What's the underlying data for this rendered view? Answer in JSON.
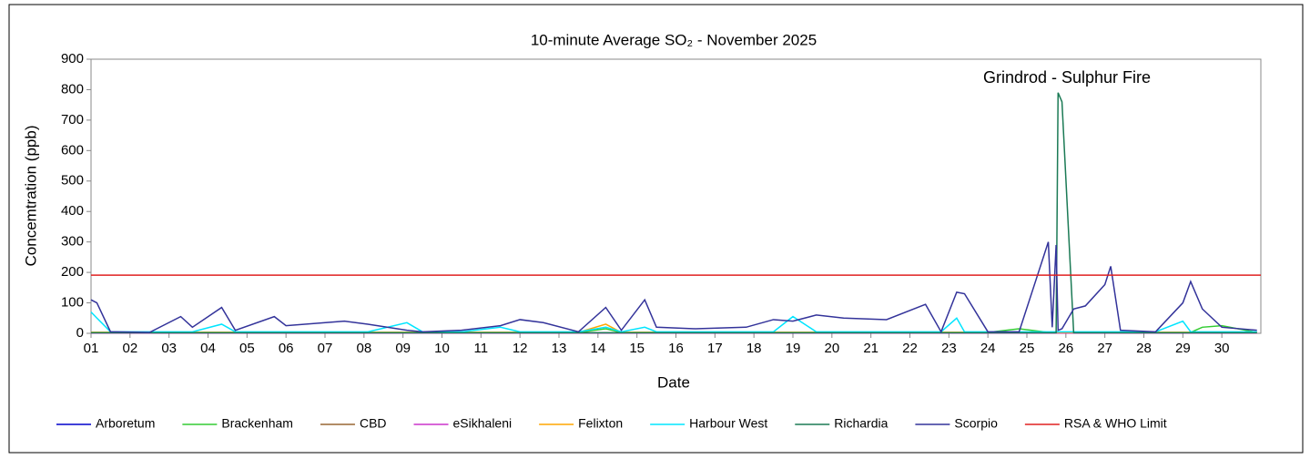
{
  "chart_data": {
    "type": "line",
    "title": "10-minute  Average  SO₂ - November  2025",
    "x_label": "Date",
    "y_label": "Concemtration (ppb)",
    "annotation": "Grindrod - Sulphur Fire",
    "xlim": [
      1,
      31
    ],
    "ylim": [
      0,
      900
    ],
    "yticks": [
      0,
      100,
      200,
      300,
      400,
      500,
      600,
      700,
      800,
      900
    ],
    "xticks": [
      {
        "value": 1,
        "label": "01"
      },
      {
        "value": 2,
        "label": "02"
      },
      {
        "value": 3,
        "label": "03"
      },
      {
        "value": 4,
        "label": "04"
      },
      {
        "value": 5,
        "label": "05"
      },
      {
        "value": 6,
        "label": "06"
      },
      {
        "value": 7,
        "label": "07"
      },
      {
        "value": 8,
        "label": "08"
      },
      {
        "value": 9,
        "label": "09"
      },
      10,
      11,
      12,
      13,
      14,
      15,
      16,
      17,
      18,
      19,
      20,
      21,
      22,
      23,
      24,
      25,
      26,
      27,
      28,
      29,
      30
    ],
    "grid": false,
    "x": [
      1,
      1.15,
      1.5,
      2.5,
      3.3,
      3.6,
      4.35,
      4.7,
      5.7,
      6,
      7.5,
      8.1,
      9.1,
      9.5,
      10.5,
      11.5,
      12,
      12.6,
      13.5,
      14.2,
      14.6,
      15.2,
      15.5,
      16.5,
      17.8,
      18.5,
      19,
      19.6,
      20.3,
      21.4,
      22.4,
      22.8,
      23.2,
      23.4,
      24,
      24.8,
      25.55,
      25.65,
      25.75,
      25.8,
      25.9,
      26.2,
      26.5,
      27,
      27.15,
      27.4,
      28.3,
      29,
      29.2,
      29.5,
      30,
      30.9
    ],
    "series": [
      {
        "name": "Arboretum",
        "color": "#0000cc",
        "values": [
          2,
          2,
          2,
          2,
          2,
          2,
          2,
          2,
          2,
          2,
          2,
          2,
          2,
          2,
          2,
          2,
          2,
          2,
          2,
          2,
          2,
          2,
          2,
          2,
          2,
          2,
          2,
          2,
          2,
          2,
          2,
          2,
          2,
          2,
          2,
          2,
          2,
          2,
          2,
          2,
          2,
          2,
          2,
          2,
          2,
          2,
          2,
          2,
          2,
          2,
          2,
          2
        ]
      },
      {
        "name": "Brackenham",
        "color": "#33cc33",
        "values": [
          3,
          3,
          3,
          3,
          3,
          3,
          3,
          3,
          3,
          3,
          3,
          3,
          3,
          3,
          3,
          3,
          3,
          3,
          3,
          15,
          3,
          3,
          3,
          3,
          3,
          3,
          3,
          3,
          3,
          3,
          3,
          3,
          3,
          3,
          3,
          15,
          3,
          3,
          3,
          3,
          3,
          3,
          3,
          3,
          3,
          3,
          3,
          3,
          3,
          20,
          25,
          3
        ]
      },
      {
        "name": "CBD",
        "color": "#996633",
        "values": [
          2,
          2,
          2,
          2,
          2,
          2,
          2,
          2,
          2,
          2,
          2,
          2,
          2,
          2,
          2,
          2,
          2,
          2,
          2,
          2,
          2,
          2,
          2,
          2,
          2,
          2,
          2,
          2,
          2,
          2,
          2,
          2,
          2,
          2,
          2,
          2,
          2,
          2,
          2,
          2,
          2,
          2,
          2,
          2,
          2,
          2,
          2,
          2,
          2,
          2,
          2,
          2
        ]
      },
      {
        "name": "eSikhaleni",
        "color": "#cc33cc",
        "values": [
          1,
          1,
          1,
          1,
          1,
          1,
          1,
          1,
          1,
          1,
          1,
          1,
          1,
          1,
          1,
          1,
          1,
          1,
          1,
          1,
          1,
          1,
          1,
          1,
          1,
          1,
          1,
          1,
          1,
          1,
          1,
          1,
          1,
          1,
          1,
          1,
          1,
          1,
          1,
          1,
          1,
          1,
          1,
          1,
          1,
          1,
          1,
          1,
          1,
          1,
          1,
          1
        ]
      },
      {
        "name": "Felixton",
        "color": "#ffa500",
        "values": [
          3,
          3,
          3,
          3,
          3,
          3,
          3,
          3,
          3,
          3,
          3,
          3,
          3,
          3,
          3,
          3,
          3,
          3,
          3,
          30,
          3,
          3,
          3,
          3,
          3,
          3,
          3,
          3,
          3,
          3,
          3,
          3,
          3,
          3,
          3,
          3,
          3,
          3,
          3,
          3,
          3,
          3,
          3,
          3,
          3,
          3,
          3,
          3,
          3,
          3,
          3,
          3
        ]
      },
      {
        "name": "Harbour West",
        "color": "#00e5ff",
        "values": [
          70,
          50,
          5,
          5,
          5,
          5,
          30,
          5,
          5,
          5,
          5,
          5,
          35,
          5,
          5,
          20,
          5,
          5,
          5,
          20,
          5,
          20,
          5,
          5,
          5,
          5,
          55,
          5,
          5,
          5,
          5,
          5,
          50,
          5,
          5,
          5,
          5,
          5,
          5,
          5,
          5,
          5,
          5,
          5,
          5,
          5,
          5,
          40,
          5,
          5,
          5,
          5
        ]
      },
      {
        "name": "Richardia",
        "color": "#1b7a55",
        "values": [
          2,
          2,
          2,
          2,
          2,
          2,
          2,
          2,
          2,
          2,
          2,
          2,
          2,
          2,
          2,
          2,
          2,
          2,
          2,
          2,
          2,
          2,
          2,
          2,
          2,
          2,
          2,
          2,
          2,
          2,
          2,
          2,
          2,
          2,
          2,
          2,
          2,
          2,
          2,
          790,
          760,
          2,
          2,
          2,
          2,
          2,
          2,
          2,
          2,
          2,
          2,
          2
        ]
      },
      {
        "name": "Scorpio",
        "color": "#33339a",
        "values": [
          110,
          100,
          5,
          3,
          55,
          20,
          85,
          10,
          55,
          25,
          40,
          30,
          10,
          5,
          10,
          25,
          45,
          35,
          5,
          85,
          10,
          110,
          20,
          15,
          20,
          45,
          40,
          60,
          50,
          45,
          95,
          5,
          135,
          130,
          5,
          5,
          300,
          20,
          290,
          10,
          15,
          80,
          90,
          160,
          220,
          10,
          5,
          100,
          170,
          80,
          20,
          10
        ]
      }
    ],
    "limit": {
      "name": "RSA & WHO Limit",
      "color": "#e02020",
      "value": 191
    }
  }
}
